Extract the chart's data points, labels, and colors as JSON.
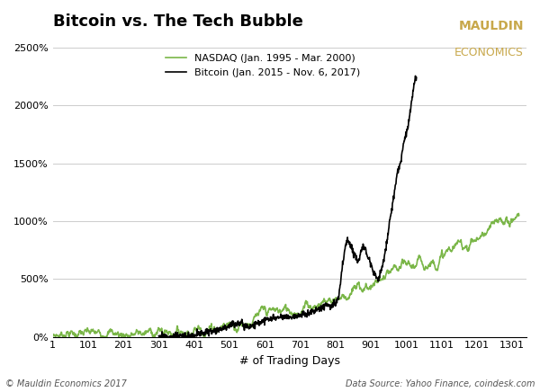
{
  "title": "Bitcoin vs. The Tech Bubble",
  "xlabel": "# of Trading Days",
  "ylabel": "",
  "nasdaq_color": "#7ab648",
  "bitcoin_color": "#000000",
  "nasdaq_label": "NASDAQ (Jan. 1995 - Mar. 2000)",
  "bitcoin_label": "Bitcoin (Jan. 2015 - Nov. 6, 2017)",
  "logo_line1": "MAULDIN",
  "logo_line2": "ECONOMICS",
  "logo_color": "#c8a84b",
  "footer_left": "© Mauldin Economics 2017",
  "footer_right": "Data Source: Yahoo Finance, coindesk.com",
  "ylim": [
    0,
    2600
  ],
  "xlim": [
    1,
    1341
  ],
  "yticks": [
    0,
    500,
    1000,
    1500,
    2000,
    2500
  ],
  "xticks": [
    1,
    101,
    201,
    301,
    401,
    501,
    601,
    701,
    801,
    901,
    1001,
    1101,
    1201,
    1301
  ],
  "bg_color": "#ffffff",
  "grid_color": "#cccccc"
}
